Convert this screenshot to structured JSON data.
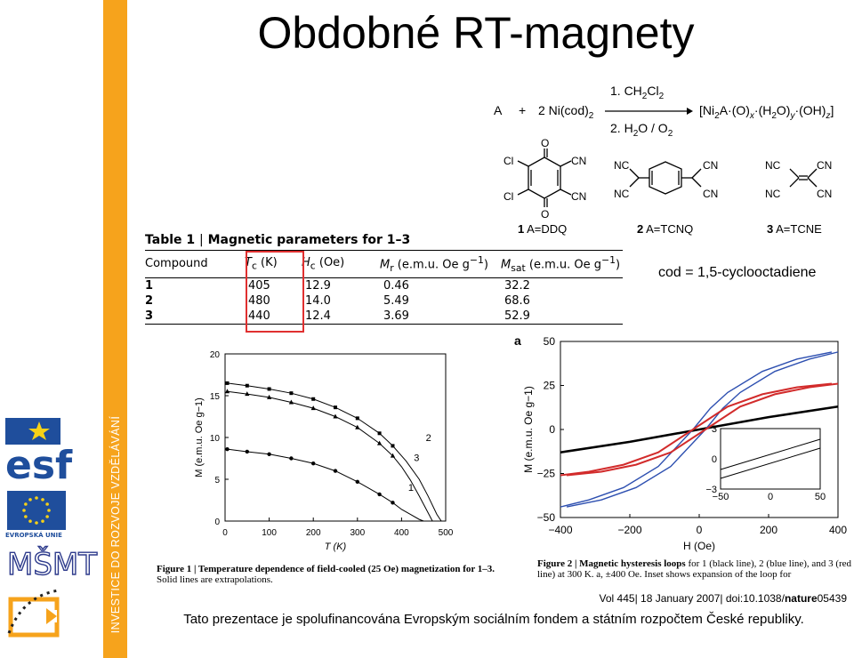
{
  "sidebar": {
    "vertical_text": "INVESTICE DO ROZVOJE VZDĚLÁVÁNÍ",
    "esf_logo_text": "esf",
    "eu_label": "EVROPSKÁ UNIE",
    "msmt_logo_text": "MŠMT",
    "accent_color": "#f6a31c",
    "eu_blue": "#1f4e9c"
  },
  "title": "Obdobné RT-magnety",
  "reaction": {
    "reactant_a": "A",
    "plus": "+",
    "reactant_b": "2 Ni(cod)2",
    "step1": "1. CH2Cl2",
    "step2": "2. H2O / O2",
    "product": "[Ni2A·(O)x·(H2O)y·(OH)z]",
    "compounds": [
      {
        "num": "1",
        "name": "A=DDQ"
      },
      {
        "num": "2",
        "name": "A=TCNQ"
      },
      {
        "num": "3",
        "name": "A=TCNE"
      }
    ],
    "struct_labels": {
      "cl": "Cl",
      "cn": "CN",
      "nc": "NC",
      "o": "O"
    }
  },
  "cod_note": "cod = 1,5-cyclooctadiene",
  "table1": {
    "title_bold": "Table 1",
    "title_rest": "Magnetic parameters for 1–3",
    "headers": [
      "Compound",
      "Tc (K)",
      "Hc (Oe)",
      "Mr (e.m.u. Oe g−1)",
      "Msat (e.m.u. Oe g−1)"
    ],
    "rows": [
      [
        "1",
        "405",
        "12.9",
        "0.46",
        "32.2"
      ],
      [
        "2",
        "480",
        "14.0",
        "5.49",
        "68.6"
      ],
      [
        "3",
        "440",
        "12.4",
        "3.69",
        "52.9"
      ]
    ],
    "highlight_color": "#e03030"
  },
  "figure1": {
    "caption_bold": "Figure 1 | Temperature dependence of field-cooled (25 Oe) magnetization for 1–3.",
    "caption_rest": "Solid lines are extrapolations.",
    "xlabel": "T (K)",
    "ylabel": "M (e.m.u. Oe g−1)",
    "xticks": [
      "0",
      "100",
      "200",
      "300",
      "400",
      "500"
    ],
    "yticks": [
      "0",
      "5",
      "10",
      "15",
      "20"
    ],
    "curve_labels": [
      "1",
      "2",
      "3"
    ]
  },
  "figure2": {
    "panel": "a",
    "caption_bold": "Figure 2 | Magnetic hysteresis loops",
    "caption_rest": "for 1 (black line), 2 (blue line), and 3 (red line) at 300 K. a, ±400 Oe. Inset shows expansion of the loop for",
    "xlabel": "H (Oe)",
    "ylabel": "M (e.m.u. Oe g−1)",
    "xticks": [
      "−400",
      "−200",
      "0",
      "200",
      "400"
    ],
    "yticks": [
      "−50",
      "−25",
      "0",
      "25",
      "50"
    ],
    "inset_xticks": [
      "−50",
      "0",
      "50"
    ],
    "inset_yticks": [
      "−3",
      "0",
      "3"
    ]
  },
  "reference": {
    "prefix": "Vol 445| 18 January 2007| doi:10.1038/",
    "bold": "nature",
    "suffix": "05439"
  },
  "footer": "Tato prezentace je spolufinancována Evropským sociálním fondem a státním rozpočtem České republiky.",
  "chart_data": [
    {
      "type": "line",
      "xlabel": "T (K)",
      "ylabel": "M (e.m.u. Oe g−1)",
      "xlim": [
        0,
        500
      ],
      "ylim": [
        0,
        20
      ],
      "series": [
        {
          "name": "1",
          "x": [
            5,
            50,
            100,
            150,
            200,
            250,
            300,
            350,
            380,
            400,
            420,
            440,
            450
          ],
          "y": [
            8.6,
            8.3,
            8.0,
            7.5,
            6.9,
            6.0,
            4.7,
            3.2,
            2.2,
            1.4,
            0.8,
            0.2,
            0
          ]
        },
        {
          "name": "2",
          "x": [
            5,
            50,
            100,
            150,
            200,
            250,
            300,
            350,
            380,
            410,
            440,
            460,
            480,
            490
          ],
          "y": [
            16.5,
            16.2,
            15.8,
            15.3,
            14.6,
            13.6,
            12.3,
            10.5,
            9.0,
            7.2,
            5.0,
            3.0,
            0.8,
            0
          ]
        },
        {
          "name": "3",
          "x": [
            5,
            50,
            100,
            150,
            200,
            250,
            300,
            350,
            380,
            400,
            420,
            440,
            455,
            470
          ],
          "y": [
            15.5,
            15.2,
            14.8,
            14.2,
            13.5,
            12.5,
            11.2,
            9.3,
            7.8,
            6.5,
            4.9,
            3.0,
            1.5,
            0
          ]
        }
      ],
      "grid": false
    },
    {
      "type": "line",
      "xlabel": "H (Oe)",
      "ylabel": "M (e.m.u. Oe g−1)",
      "xlim": [
        -400,
        400
      ],
      "ylim": [
        -50,
        50
      ],
      "series": [
        {
          "name": "1",
          "x": [
            -400,
            -200,
            0,
            200,
            400
          ],
          "y": [
            -13,
            -7,
            0,
            7,
            13
          ]
        },
        {
          "name": "2",
          "x": [
            -400,
            -300,
            -200,
            -100,
            0,
            50,
            100,
            200,
            300,
            400
          ],
          "y": [
            -44,
            -40,
            -33,
            -21,
            0,
            12,
            21,
            33,
            40,
            44
          ]
        },
        {
          "name": "3",
          "x": [
            -400,
            -300,
            -200,
            -100,
            0,
            100,
            200,
            300,
            400
          ],
          "y": [
            -26,
            -24,
            -20,
            -13,
            0,
            13,
            20,
            24,
            26
          ]
        }
      ]
    }
  ]
}
